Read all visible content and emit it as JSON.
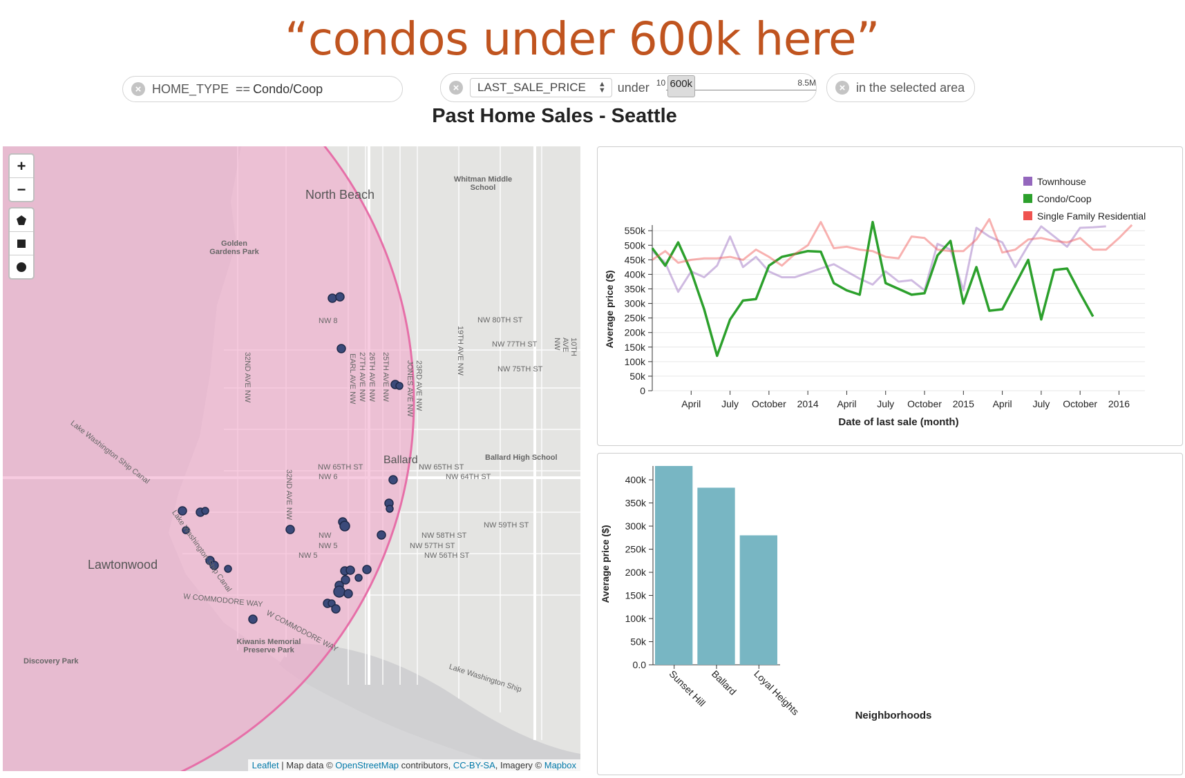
{
  "caption": "“condos under 600k here”",
  "filters": {
    "home_type": {
      "field": "HOME_TYPE",
      "op": "==",
      "value": "Condo/Coop"
    },
    "price": {
      "field": "LAST_SALE_PRICE",
      "op": "under",
      "min": "10",
      "value": "600k",
      "max": "8.5M",
      "fraction": 0.071
    },
    "area": {
      "label": "in the selected area"
    }
  },
  "page_title": "Past Home Sales - Seattle",
  "map": {
    "zoom_in": "+",
    "zoom_out": "−",
    "labels": {
      "north_beach": "North Beach",
      "whitman": "Whitman Middle School",
      "golden_gardens": "Golden Gardens Park",
      "nw80": "NW 80TH ST",
      "nw77": "NW 77TH ST",
      "nw75": "NW 75TH ST",
      "nw85": "NW 8",
      "nw65a": "NW 65TH ST",
      "nw65b": "NW 65TH ST",
      "nw64": "NW 64TH ST",
      "nw6x": "NW 6",
      "nw59": "NW 59TH ST",
      "nw58": "NW 58TH ST",
      "nw57": "NW 57TH ST",
      "nw56": "NW 56TH ST",
      "nw5a": "NW",
      "nw5b": "NW 5",
      "nw5c": "NW 5",
      "ave32a": "32ND AVE NW",
      "ave32b": "32ND AVE NW",
      "earl": "EARL AVE NW",
      "ave27": "27TH AVE NW",
      "ave26": "26TH AVE NW",
      "ave25": "25TH AVE NW",
      "jones": "JONES AVE NW",
      "ave23": "23RD AVE NW",
      "ave19": "19TH AVE NW",
      "ave10": "10TH AVE NW",
      "ballard": "Ballard",
      "ballard_hs": "Ballard High School",
      "lwsc1": "Lake Washington Ship Canal",
      "lwsc2": "Lake Washington Ship Canal",
      "lwsc3": "Lake Washington Ship",
      "lawtonwood": "Lawtonwood",
      "commodore1": "W COMMODORE WAY",
      "commodore2": "W COMMODORE WAY",
      "kiwanis": "Kiwanis Memorial Preserve Park",
      "discovery": "Discovery Park"
    },
    "attribution": {
      "leaflet": "Leaflet",
      "text1": " | Map data © ",
      "osm": "OpenStreetMap",
      "text2": " contributors, ",
      "cc": "CC-BY-SA",
      "text3": ", Imagery © ",
      "mapbox": "Mapbox"
    },
    "colors": {
      "selection_fill": "#f2a9cc",
      "selection_stroke": "#e66fa8",
      "point": "#3b4a7a",
      "water": "#d9cfd4"
    }
  },
  "chart_data": [
    {
      "type": "line",
      "xlabel": "Date of last sale (month)",
      "ylabel": "Average price ($)",
      "ylim": [
        0,
        560000
      ],
      "xlim": [
        "2013-01",
        "2016-03"
      ],
      "x_ticks": [
        "April",
        "July",
        "October",
        "2014",
        "April",
        "July",
        "October",
        "2015",
        "April",
        "July",
        "October",
        "2016"
      ],
      "y_ticks": [
        "0",
        "50k",
        "100k",
        "150k",
        "200k",
        "250k",
        "300k",
        "350k",
        "400k",
        "450k",
        "500k",
        "550k"
      ],
      "legend_position": "top-right",
      "grid": true,
      "series": [
        {
          "name": "Townhouse",
          "color": "#9467bd",
          "opacity": 0.45,
          "x": [
            "2013-01",
            "2013-02",
            "2013-03",
            "2013-04",
            "2013-05",
            "2013-06",
            "2013-07",
            "2013-08",
            "2013-09",
            "2013-10",
            "2013-11",
            "2013-12",
            "2014-01",
            "2014-02",
            "2014-03",
            "2014-04",
            "2014-05",
            "2014-06",
            "2014-07",
            "2014-08",
            "2014-09",
            "2014-10",
            "2014-11",
            "2014-12",
            "2015-01",
            "2015-02",
            "2015-03",
            "2015-04",
            "2015-05",
            "2015-06",
            "2015-07",
            "2015-08",
            "2015-09",
            "2015-10",
            "2015-11",
            "2015-12"
          ],
          "values": [
            480000,
            440000,
            340000,
            410000,
            390000,
            430000,
            530000,
            425000,
            460000,
            410000,
            390000,
            390000,
            405000,
            420000,
            435000,
            410000,
            385000,
            365000,
            410000,
            375000,
            380000,
            345000,
            505000,
            485000,
            345000,
            560000,
            530000,
            510000,
            425000,
            500000,
            565000,
            530000,
            495000,
            560000,
            562000,
            565000
          ]
        },
        {
          "name": "Condo/Coop",
          "color": "#2ca02c",
          "opacity": 1,
          "x": [
            "2013-01",
            "2013-02",
            "2013-03",
            "2013-04",
            "2013-05",
            "2013-06",
            "2013-07",
            "2013-08",
            "2013-09",
            "2013-10",
            "2013-11",
            "2013-12",
            "2014-01",
            "2014-02",
            "2014-03",
            "2014-04",
            "2014-05",
            "2014-06",
            "2014-07",
            "2014-08",
            "2014-09",
            "2014-10",
            "2014-11",
            "2014-12",
            "2015-01",
            "2015-02",
            "2015-03",
            "2015-04",
            "2015-05",
            "2015-06",
            "2015-07",
            "2015-08",
            "2015-09",
            "2015-10",
            "2015-11",
            "2015-12"
          ],
          "values": [
            490000,
            430000,
            510000,
            410000,
            280000,
            120000,
            245000,
            310000,
            315000,
            430000,
            460000,
            470000,
            480000,
            478000,
            370000,
            345000,
            330000,
            580000,
            370000,
            350000,
            330000,
            335000,
            465000,
            515000,
            300000,
            425000,
            275000,
            280000,
            365000,
            450000,
            245000,
            415000,
            420000,
            335000,
            255000,
            null
          ]
        },
        {
          "name": "Single Family Residential",
          "color": "#ef5350",
          "opacity": 0.45,
          "x": [
            "2013-01",
            "2013-02",
            "2013-03",
            "2013-04",
            "2013-05",
            "2013-06",
            "2013-07",
            "2013-08",
            "2013-09",
            "2013-10",
            "2013-11",
            "2013-12",
            "2014-01",
            "2014-02",
            "2014-03",
            "2014-04",
            "2014-05",
            "2014-06",
            "2014-07",
            "2014-08",
            "2014-09",
            "2014-10",
            "2014-11",
            "2014-12",
            "2015-01",
            "2015-02",
            "2015-03",
            "2015-04",
            "2015-05",
            "2015-06",
            "2015-07",
            "2015-08",
            "2015-09",
            "2015-10",
            "2015-11",
            "2015-12",
            "2016-01",
            "2016-02"
          ],
          "values": [
            450000,
            480000,
            440000,
            450000,
            455000,
            455000,
            460000,
            450000,
            485000,
            460000,
            430000,
            470000,
            500000,
            580000,
            490000,
            495000,
            485000,
            480000,
            460000,
            455000,
            530000,
            525000,
            485000,
            480000,
            480000,
            520000,
            590000,
            475000,
            485000,
            520000,
            525000,
            515000,
            510000,
            525000,
            485000,
            485000,
            525000,
            570000
          ]
        }
      ]
    },
    {
      "type": "bar",
      "xlabel": "Neighborhoods",
      "ylabel": "Average price ($)",
      "ylim": [
        0,
        430000
      ],
      "y_ticks": [
        "0.0",
        "50k",
        "100k",
        "150k",
        "200k",
        "250k",
        "300k",
        "350k",
        "400k"
      ],
      "categories": [
        "Sunset Hill",
        "Ballard",
        "Loyal Heights"
      ],
      "values": [
        430000,
        383000,
        280000
      ],
      "color": "#78b6c3"
    }
  ]
}
